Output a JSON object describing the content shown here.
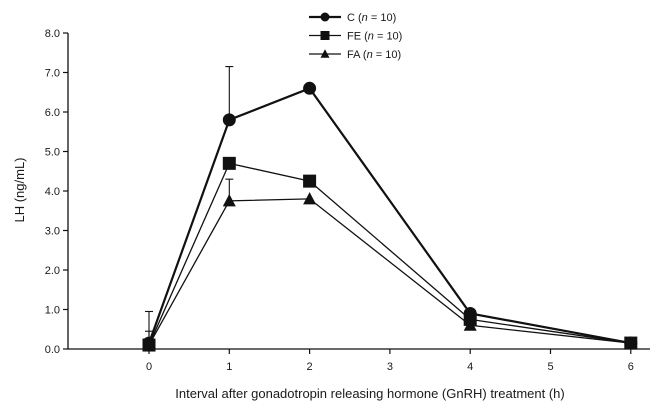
{
  "chart_data": {
    "type": "line",
    "title": "",
    "xlabel": "Interval after gonadotropin releasing hormone (GnRH) treatment (h)",
    "ylabel": "LH (ng/mL)",
    "xlim": [
      -1,
      6
    ],
    "ylim": [
      0,
      8
    ],
    "x_ticks": [
      "0",
      "1",
      "2",
      "3",
      "4",
      "5",
      "6"
    ],
    "y_ticks": [
      "0.0",
      "1.0",
      "2.0",
      "3.0",
      "4.0",
      "5.0",
      "6.0",
      "7.0",
      "8.0"
    ],
    "grid": false,
    "legend_position": "top-center",
    "series": [
      {
        "name_prefix": "C (",
        "name_n": "n",
        "name_suffix": " = 10)",
        "marker": "circle",
        "x": [
          0,
          1,
          2,
          4,
          6
        ],
        "values": [
          0.15,
          5.8,
          6.6,
          0.9,
          0.15
        ],
        "error_upper": [
          0.8,
          1.35,
          0,
          0,
          0
        ]
      },
      {
        "name_prefix": "FE (",
        "name_n": "n",
        "name_suffix": " = 10)",
        "marker": "square",
        "x": [
          0,
          1,
          2,
          4,
          6
        ],
        "values": [
          0.1,
          4.7,
          4.25,
          0.75,
          0.15
        ],
        "error_upper": [
          0,
          0,
          0,
          0,
          0
        ]
      },
      {
        "name_prefix": "FA (",
        "name_n": "n",
        "name_suffix": " = 10)",
        "marker": "triangle",
        "x": [
          0,
          1,
          2,
          4,
          6
        ],
        "values": [
          0.1,
          3.75,
          3.8,
          0.6,
          0.15
        ],
        "error_upper": [
          0.35,
          0.55,
          0,
          0,
          0
        ]
      }
    ]
  }
}
